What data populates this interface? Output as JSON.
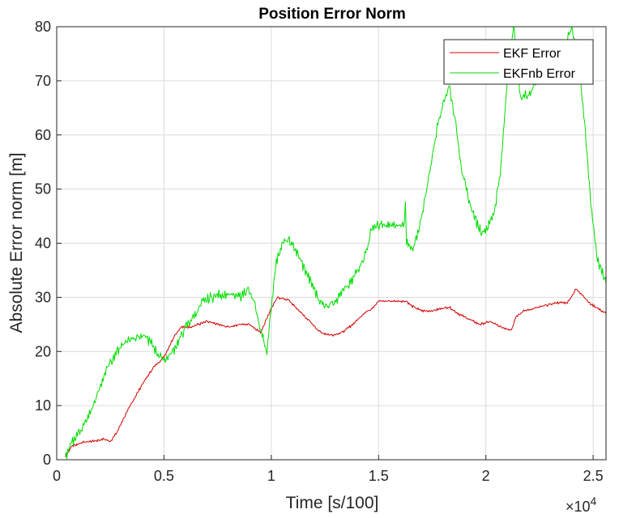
{
  "chart_data": {
    "type": "line",
    "title": "Position Error Norm",
    "xlabel": "Time [s/100]",
    "ylabel": "Absolute Error norm [m]",
    "x_exponent_label": "×10",
    "x_exponent_power": "4",
    "xlim": [
      0,
      25600
    ],
    "ylim": [
      0,
      80
    ],
    "x_ticks": [
      0,
      5000,
      10000,
      15000,
      20000,
      25000
    ],
    "x_tick_labels": [
      "0",
      "0.5",
      "1",
      "1.5",
      "2",
      "2.5"
    ],
    "y_ticks": [
      0,
      10,
      20,
      30,
      40,
      50,
      60,
      70,
      80
    ],
    "y_tick_labels": [
      "0",
      "10",
      "20",
      "30",
      "40",
      "50",
      "60",
      "70",
      "80"
    ],
    "grid": true,
    "legend_position": "top-right",
    "series": [
      {
        "name": "EKF Error",
        "color": "#d40000",
        "noise": 0.15,
        "x": [
          400,
          700,
          1200,
          1800,
          2200,
          2500,
          2800,
          3100,
          3500,
          4000,
          4500,
          5000,
          5500,
          5800,
          6200,
          6600,
          7000,
          7500,
          8000,
          8500,
          9000,
          9500,
          10000,
          10300,
          10800,
          11300,
          11800,
          12300,
          12800,
          13300,
          13800,
          14300,
          14700,
          15000,
          15500,
          16000,
          16300,
          16500,
          17000,
          17500,
          18000,
          18300,
          18700,
          19200,
          19700,
          20200,
          20700,
          21200,
          21400,
          21800,
          22300,
          22800,
          23300,
          23800,
          24200,
          24500,
          24800,
          25200,
          25600
        ],
        "y": [
          0.5,
          2.5,
          3.2,
          3.5,
          3.8,
          3.4,
          5.0,
          7.5,
          10.5,
          14.0,
          17.0,
          19.0,
          23.0,
          24.5,
          24.5,
          25.0,
          25.5,
          25.0,
          24.5,
          25.0,
          25.0,
          23.5,
          28.0,
          30.0,
          29.5,
          27.5,
          25.5,
          23.5,
          23.0,
          23.5,
          25.0,
          27.0,
          28.0,
          29.3,
          29.3,
          29.3,
          29.3,
          28.5,
          27.5,
          27.5,
          28.0,
          28.2,
          27.0,
          26.0,
          25.0,
          25.5,
          24.5,
          24.0,
          26.5,
          27.5,
          28.0,
          28.5,
          29.0,
          29.0,
          31.5,
          30.5,
          29.0,
          28.0,
          27.0
        ]
      },
      {
        "name": "EKFnb Error",
        "color": "#00dd00",
        "noise": 0.6,
        "x": [
          400,
          700,
          1000,
          1300,
          1600,
          1900,
          2200,
          2500,
          2800,
          3100,
          3500,
          3800,
          4200,
          4500,
          4800,
          5100,
          5400,
          5700,
          6000,
          6400,
          6800,
          7200,
          7600,
          8000,
          8500,
          8900,
          9200,
          9500,
          9800,
          10000,
          10200,
          10500,
          10800,
          11100,
          11400,
          11700,
          12000,
          12300,
          12600,
          13000,
          13300,
          13700,
          14000,
          14400,
          14700,
          15100,
          15600,
          16000,
          16200,
          16250,
          16300,
          16600,
          16900,
          17200,
          17500,
          17800,
          18100,
          18300,
          18600,
          18900,
          19200,
          19500,
          19800,
          20100,
          20400,
          20700,
          21000,
          21300,
          21600,
          22000,
          22400,
          22800,
          23200,
          23600,
          24000,
          24300,
          24600,
          24900,
          25200,
          25600
        ],
        "y": [
          0.5,
          3.0,
          5.0,
          6.5,
          9.0,
          12.0,
          15.5,
          18.0,
          20.0,
          21.5,
          22.5,
          22.8,
          22.5,
          21.0,
          19.0,
          18.5,
          20.0,
          22.0,
          24.5,
          26.5,
          29.0,
          30.0,
          30.5,
          30.5,
          30.0,
          31.5,
          29.0,
          24.0,
          20.0,
          28.0,
          36.0,
          40.0,
          40.5,
          39.0,
          36.5,
          34.0,
          31.5,
          29.0,
          28.5,
          29.5,
          31.0,
          32.5,
          35.0,
          38.0,
          43.0,
          43.2,
          43.2,
          43.2,
          43.5,
          48.0,
          40.0,
          38.5,
          43.0,
          49.0,
          56.0,
          63.0,
          67.0,
          69.0,
          62.0,
          53.0,
          48.0,
          44.5,
          42.0,
          43.0,
          46.0,
          54.0,
          70.0,
          80.0,
          67.0,
          67.5,
          70.0,
          72.5,
          74.0,
          76.0,
          79.5,
          75.0,
          62.0,
          47.0,
          37.0,
          32.5
        ]
      }
    ]
  }
}
